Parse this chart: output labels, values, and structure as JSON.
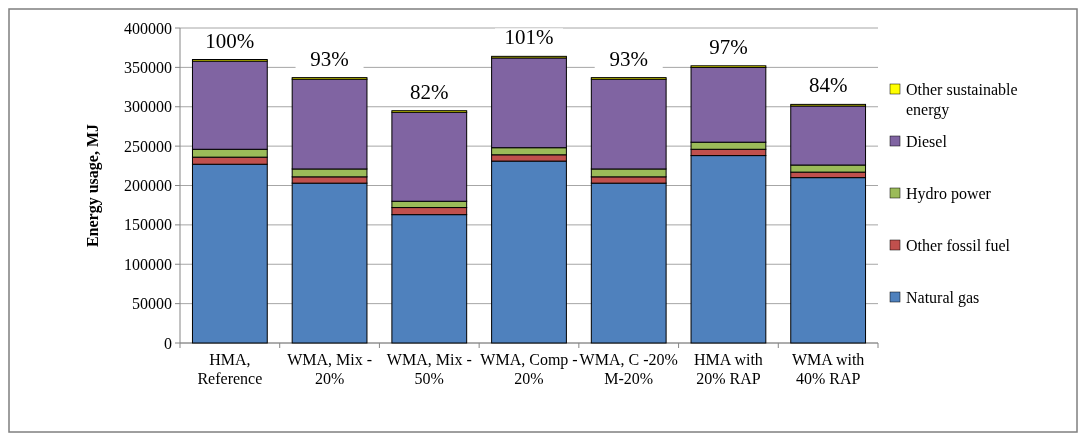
{
  "chart_data": {
    "type": "bar",
    "stacked": true,
    "ylabel": "Energy usage, MJ",
    "categories": [
      "HMA, Reference",
      "WMA, Mix -20%",
      "WMA, Mix -50%",
      "WMA, Comp -20%",
      "WMA, C -20% M-20%",
      "HMA with 20% RAP",
      "WMA with 40% RAP"
    ],
    "series": [
      {
        "name": "Natural gas",
        "color": "#4f81bd",
        "values": [
          227000,
          203000,
          163000,
          231000,
          203000,
          238000,
          210000
        ]
      },
      {
        "name": "Other fossil fuel",
        "color": "#c0504d",
        "values": [
          9000,
          8000,
          9000,
          8000,
          8000,
          8000,
          7000
        ]
      },
      {
        "name": "Hydro power",
        "color": "#9bbb59",
        "values": [
          10000,
          10000,
          8000,
          9000,
          10000,
          9000,
          9000
        ]
      },
      {
        "name": "Diesel",
        "color": "#8064a2",
        "values": [
          112000,
          114000,
          113000,
          114000,
          114000,
          95000,
          75000
        ]
      },
      {
        "name": "Other sustainable energy",
        "color": "#ffff00",
        "values": [
          2000,
          2000,
          2000,
          2000,
          2000,
          2000,
          2000
        ]
      }
    ],
    "annotations": [
      {
        "text": "100%",
        "x": "HMA, Reference",
        "y": 360000
      },
      {
        "text": "93%",
        "x": "WMA, Mix -20%",
        "y": 337000
      },
      {
        "text": "82%",
        "x": "WMA, Mix -50%",
        "y": 294000
      },
      {
        "text": "101%",
        "x": "WMA, Comp -20%",
        "y": 364000
      },
      {
        "text": "93%",
        "x": "WMA, C -20% M-20%",
        "y": 337000
      },
      {
        "text": "97%",
        "x": "HMA with 20% RAP",
        "y": 352000
      },
      {
        "text": "84%",
        "x": "WMA with 40% RAP",
        "y": 303000
      }
    ],
    "ylim": [
      0,
      400000
    ],
    "yticks": [
      0,
      50000,
      100000,
      150000,
      200000,
      250000,
      300000,
      350000,
      400000
    ],
    "grid": "y",
    "legend": "right"
  }
}
